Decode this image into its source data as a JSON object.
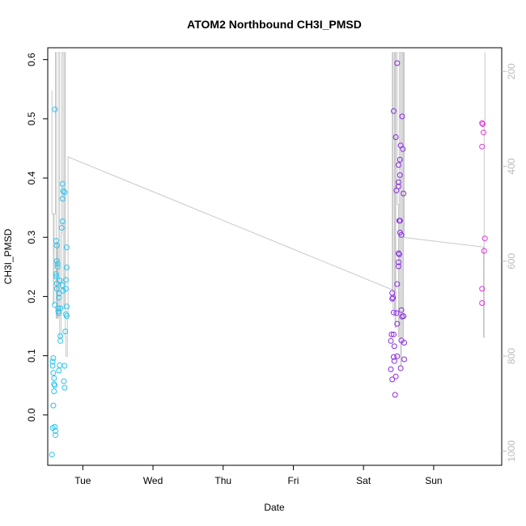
{
  "chart_data": {
    "type": "scatter",
    "title": "ATOM2 Northbound CH3I_PMSD",
    "xlabel": "Date",
    "ylabel": "CH3I_PMSD",
    "x_ticks": [
      {
        "label": "Tue",
        "day": 1.0
      },
      {
        "label": "Wed",
        "day": 2.0
      },
      {
        "label": "Thu",
        "day": 3.0
      },
      {
        "label": "Fri",
        "day": 4.0
      },
      {
        "label": "Sat",
        "day": 5.0
      },
      {
        "label": "Sun",
        "day": 6.0
      }
    ],
    "xlim": [
      0.5,
      6.97
    ],
    "ylim": [
      -0.085,
      0.62
    ],
    "y_ticks": [
      0.0,
      0.1,
      0.2,
      0.3,
      0.4,
      0.5,
      0.6
    ],
    "right_axis": {
      "reversed": true,
      "ylim": [
        1030,
        150
      ],
      "ticks": [
        200,
        400,
        600,
        800,
        1000
      ],
      "color": "#bbbbbb"
    },
    "grid": false,
    "colors": {
      "early_group": "#29c3f0",
      "late_group": "#8a2be2",
      "last_group": "#dd33dd",
      "secondary_line": "#c8c8c8"
    },
    "series": [
      {
        "color": "#29c3f0",
        "points": [
          [
            0.58,
            0.096
          ],
          [
            0.57,
            0.09
          ],
          [
            0.57,
            0.083
          ],
          [
            0.58,
            0.071
          ],
          [
            0.59,
            0.062
          ],
          [
            0.59,
            0.052
          ],
          [
            0.6,
            0.05
          ],
          [
            0.59,
            0.04
          ],
          [
            0.58,
            0.016
          ],
          [
            0.57,
            -0.022
          ],
          [
            0.6,
            -0.02
          ],
          [
            0.61,
            -0.027
          ],
          [
            0.61,
            -0.034
          ],
          [
            0.56,
            -0.067
          ],
          [
            0.6,
            0.516
          ],
          [
            0.6,
            0.186
          ],
          [
            0.62,
            0.294
          ],
          [
            0.63,
            0.286
          ],
          [
            0.63,
            0.26
          ],
          [
            0.64,
            0.255
          ],
          [
            0.64,
            0.25
          ],
          [
            0.62,
            0.238
          ],
          [
            0.62,
            0.234
          ],
          [
            0.63,
            0.222
          ],
          [
            0.63,
            0.213
          ],
          [
            0.66,
            0.205
          ],
          [
            0.66,
            0.198
          ],
          [
            0.65,
            0.18
          ],
          [
            0.65,
            0.175
          ],
          [
            0.66,
            0.172
          ],
          [
            0.68,
            0.18
          ],
          [
            0.67,
            0.227
          ],
          [
            0.68,
            0.133
          ],
          [
            0.68,
            0.125
          ],
          [
            0.67,
            0.084
          ],
          [
            0.66,
            0.075
          ],
          [
            0.71,
            0.39
          ],
          [
            0.71,
            0.365
          ],
          [
            0.72,
            0.378
          ],
          [
            0.74,
            0.376
          ],
          [
            0.71,
            0.327
          ],
          [
            0.7,
            0.316
          ],
          [
            0.71,
            0.219
          ],
          [
            0.72,
            0.21
          ],
          [
            0.74,
            0.083
          ],
          [
            0.73,
            0.057
          ],
          [
            0.74,
            0.046
          ],
          [
            0.77,
            0.283
          ],
          [
            0.77,
            0.249
          ],
          [
            0.76,
            0.228
          ],
          [
            0.76,
            0.213
          ],
          [
            0.77,
            0.183
          ],
          [
            0.76,
            0.17
          ],
          [
            0.77,
            0.167
          ],
          [
            0.75,
            0.141
          ]
        ]
      },
      {
        "color": "#8a2be2",
        "points": [
          [
            5.43,
            0.513
          ],
          [
            5.48,
            0.594
          ],
          [
            5.46,
            0.469
          ],
          [
            5.55,
            0.504
          ],
          [
            5.53,
            0.455
          ],
          [
            5.56,
            0.449
          ],
          [
            5.52,
            0.431
          ],
          [
            5.5,
            0.422
          ],
          [
            5.52,
            0.405
          ],
          [
            5.5,
            0.393
          ],
          [
            5.5,
            0.386
          ],
          [
            5.47,
            0.379
          ],
          [
            5.57,
            0.374
          ],
          [
            5.51,
            0.328
          ],
          [
            5.52,
            0.328
          ],
          [
            5.52,
            0.308
          ],
          [
            5.54,
            0.304
          ],
          [
            5.5,
            0.273
          ],
          [
            5.51,
            0.271
          ],
          [
            5.5,
            0.258
          ],
          [
            5.5,
            0.251
          ],
          [
            5.48,
            0.221
          ],
          [
            5.41,
            0.206
          ],
          [
            5.42,
            0.198
          ],
          [
            5.41,
            0.196
          ],
          [
            5.43,
            0.173
          ],
          [
            5.47,
            0.172
          ],
          [
            5.54,
            0.177
          ],
          [
            5.55,
            0.166
          ],
          [
            5.57,
            0.167
          ],
          [
            5.48,
            0.154
          ],
          [
            5.4,
            0.136
          ],
          [
            5.43,
            0.136
          ],
          [
            5.44,
            0.116
          ],
          [
            5.39,
            0.125
          ],
          [
            5.54,
            0.126
          ],
          [
            5.58,
            0.122
          ],
          [
            5.43,
            0.098
          ],
          [
            5.48,
            0.099
          ],
          [
            5.58,
            0.094
          ],
          [
            5.44,
            0.091
          ],
          [
            5.39,
            0.077
          ],
          [
            5.53,
            0.079
          ],
          [
            5.46,
            0.065
          ],
          [
            5.41,
            0.06
          ],
          [
            5.45,
            0.034
          ]
        ]
      },
      {
        "color": "#dd33dd",
        "points": [
          [
            6.69,
            0.493
          ],
          [
            6.7,
            0.491
          ],
          [
            6.71,
            0.477
          ],
          [
            6.69,
            0.453
          ],
          [
            6.73,
            0.298
          ],
          [
            6.72,
            0.277
          ],
          [
            6.69,
            0.213
          ],
          [
            6.69,
            0.189
          ]
        ]
      }
    ],
    "secondary_line": {
      "axis": "right",
      "points": [
        [
          0.56,
          240
        ],
        [
          0.56,
          500
        ],
        [
          0.58,
          500
        ],
        [
          0.58,
          690
        ],
        [
          0.59,
          690
        ],
        [
          0.59,
          500
        ],
        [
          0.61,
          500
        ],
        [
          0.61,
          160
        ],
        [
          0.62,
          160
        ],
        [
          0.62,
          720
        ],
        [
          0.63,
          720
        ],
        [
          0.63,
          560
        ],
        [
          0.64,
          560
        ],
        [
          0.64,
          720
        ],
        [
          0.65,
          720
        ],
        [
          0.65,
          160
        ],
        [
          0.67,
          160
        ],
        [
          0.67,
          760
        ],
        [
          0.69,
          760
        ],
        [
          0.69,
          540
        ],
        [
          0.7,
          540
        ],
        [
          0.7,
          160
        ],
        [
          0.72,
          160
        ],
        [
          0.72,
          700
        ],
        [
          0.74,
          700
        ],
        [
          0.74,
          160
        ],
        [
          0.75,
          160
        ],
        [
          0.75,
          760
        ],
        [
          0.76,
          760
        ],
        [
          0.76,
          800
        ],
        [
          0.78,
          800
        ],
        [
          0.78,
          720
        ],
        [
          0.79,
          720
        ],
        [
          0.79,
          380
        ],
        [
          5.41,
          660
        ],
        [
          5.41,
          160
        ],
        [
          5.42,
          160
        ],
        [
          5.42,
          700
        ],
        [
          5.44,
          700
        ],
        [
          5.44,
          160
        ],
        [
          5.45,
          160
        ],
        [
          5.45,
          740
        ],
        [
          5.46,
          740
        ],
        [
          5.46,
          160
        ],
        [
          5.48,
          160
        ],
        [
          5.48,
          480
        ],
        [
          5.5,
          480
        ],
        [
          5.5,
          760
        ],
        [
          5.51,
          760
        ],
        [
          5.51,
          160
        ],
        [
          5.53,
          160
        ],
        [
          5.53,
          820
        ],
        [
          5.54,
          820
        ],
        [
          5.54,
          160
        ],
        [
          5.56,
          160
        ],
        [
          5.56,
          760
        ],
        [
          5.57,
          760
        ],
        [
          5.57,
          160
        ],
        [
          5.58,
          160
        ],
        [
          5.58,
          550
        ],
        [
          6.71,
          570
        ],
        [
          6.71,
          760
        ],
        [
          6.72,
          760
        ],
        [
          6.72,
          310
        ],
        [
          6.73,
          310
        ],
        [
          6.73,
          160
        ]
      ]
    }
  }
}
